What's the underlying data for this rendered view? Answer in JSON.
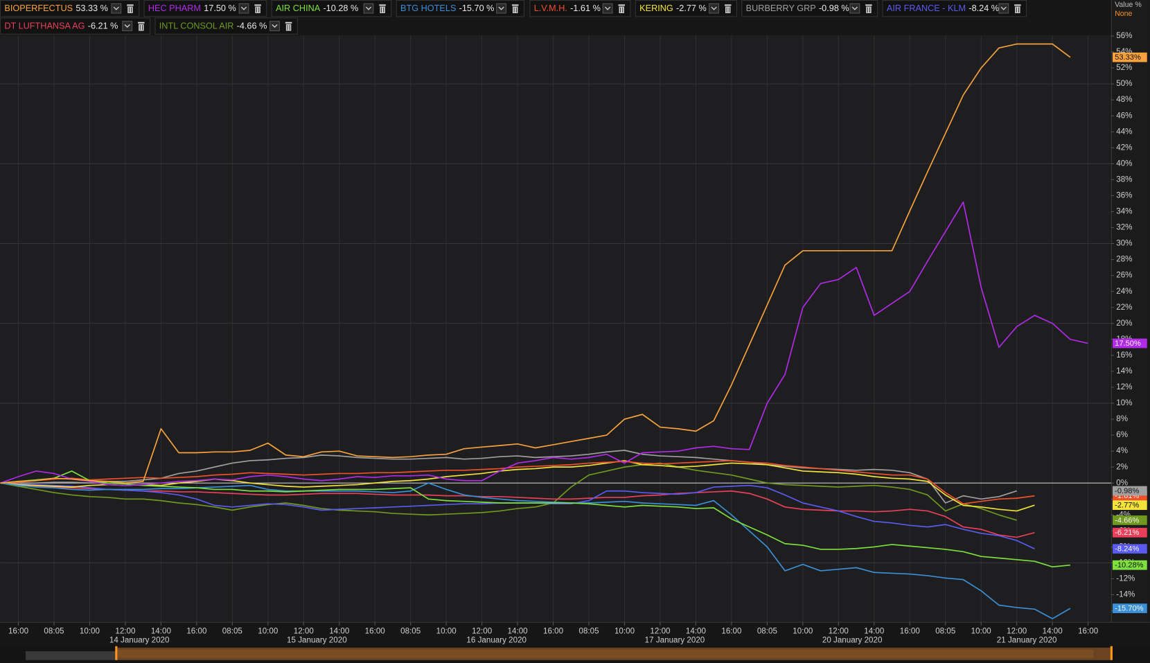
{
  "chart_data": {
    "type": "line",
    "value_axis_label": "Value %",
    "mode_label": "None",
    "categories": [
      null,
      "16:00",
      null,
      "08:05",
      null,
      "10:00",
      null,
      "12:00",
      null,
      "14:00",
      null,
      "16:00",
      null,
      "08:05",
      null,
      "10:00",
      null,
      "12:00",
      null,
      "14:00",
      null,
      "16:00",
      null,
      "08:05",
      null,
      "10:00",
      null,
      "12:00",
      null,
      "14:00",
      null,
      "16:00",
      null,
      "08:05",
      null,
      "10:00",
      null,
      "12:00",
      null,
      "14:00",
      null,
      "16:00",
      null,
      "08:05",
      null,
      "10:00",
      null,
      "12:00",
      null,
      "14:00",
      null,
      "16:00",
      null,
      "08:05",
      null,
      "10:00",
      null,
      "12:00",
      null,
      "14:00",
      null,
      "16:00"
    ],
    "date_labels": [
      "14 January 2020",
      "15 January 2020",
      "16 January 2020",
      "17 January 2020",
      "20 January 2020",
      "21 January 2020"
    ],
    "ylim": [
      -17.4,
      56.1
    ],
    "yticks": [
      {
        "value": 56,
        "label": "56%"
      },
      {
        "value": 54,
        "label": "54%"
      },
      {
        "value": 52,
        "label": "52%"
      },
      {
        "value": 50,
        "label": "50%"
      },
      {
        "value": 48,
        "label": "48%"
      },
      {
        "value": 46,
        "label": "46%"
      },
      {
        "value": 44,
        "label": "44%"
      },
      {
        "value": 42,
        "label": "42%"
      },
      {
        "value": 40,
        "label": "40%"
      },
      {
        "value": 38,
        "label": "38%"
      },
      {
        "value": 36,
        "label": "36%"
      },
      {
        "value": 34,
        "label": "34%"
      },
      {
        "value": 32,
        "label": "32%"
      },
      {
        "value": 30,
        "label": "30%"
      },
      {
        "value": 28,
        "label": "28%"
      },
      {
        "value": 26,
        "label": "26%"
      },
      {
        "value": 24,
        "label": "24%"
      },
      {
        "value": 22,
        "label": "22%"
      },
      {
        "value": 20,
        "label": "20%"
      },
      {
        "value": 18,
        "label": "18%"
      },
      {
        "value": 16,
        "label": "16%"
      },
      {
        "value": 14,
        "label": "14%"
      },
      {
        "value": 12,
        "label": "12%"
      },
      {
        "value": 10,
        "label": "10%"
      },
      {
        "value": 8,
        "label": "8%"
      },
      {
        "value": 6,
        "label": "6%"
      },
      {
        "value": 4,
        "label": "4%"
      },
      {
        "value": 2,
        "label": "2%"
      },
      {
        "value": 0,
        "label": "0%"
      },
      {
        "value": -2,
        "label": "-2%"
      },
      {
        "value": -4,
        "label": "-4%"
      },
      {
        "value": -6,
        "label": "-6%"
      },
      {
        "value": -8,
        "label": "-8%"
      },
      {
        "value": -10,
        "label": "-10%"
      },
      {
        "value": -12,
        "label": "-12%"
      },
      {
        "value": -14,
        "label": "-14%"
      },
      {
        "value": -16,
        "label": "-16%"
      }
    ],
    "grid": true,
    "series": [
      {
        "name": "BIOPERFECTUS",
        "color": "#f7a23c",
        "legend_label": "53.33 %",
        "end_label": "53.33%",
        "values": [
          0,
          0.2,
          0.3,
          0.6,
          0.5,
          0.3,
          0.2,
          0,
          0.2,
          6.8,
          3.8,
          3.8,
          3.9,
          3.9,
          4.1,
          5.0,
          3.5,
          3.3,
          3.9,
          4.0,
          3.4,
          3.3,
          3.2,
          3.3,
          3.5,
          3.6,
          4.3,
          4.5,
          4.7,
          4.9,
          4.4,
          4.8,
          5.2,
          5.6,
          6.0,
          8.0,
          8.6,
          7.0,
          6.8,
          6.5,
          7.8,
          12.3,
          17.3,
          22.3,
          27.3,
          29.1,
          29.1,
          29.1,
          29.1,
          29.1,
          29.1,
          34.1,
          39.0,
          43.8,
          48.6,
          52,
          54.5,
          55,
          55,
          55,
          53.33,
          null
        ]
      },
      {
        "name": "HEC PHARM",
        "color": "#b02ae8",
        "legend_label": "17.50 %",
        "end_label": "17.50%",
        "values": [
          0,
          0.8,
          1.5,
          1.2,
          0.5,
          0.2,
          -0.2,
          -0.3,
          -0.2,
          0,
          0.2,
          0.3,
          0.5,
          0.4,
          0.8,
          1.0,
          0.8,
          0.5,
          0.3,
          0.5,
          0.8,
          0.7,
          0.9,
          0.9,
          1.0,
          0.5,
          0.3,
          0.3,
          1.5,
          2.5,
          2.8,
          3.2,
          3.0,
          3.2,
          3.6,
          2.5,
          3.8,
          3.9,
          4.0,
          4.4,
          4.6,
          4.3,
          4.2,
          10.0,
          13.6,
          22,
          25,
          25.5,
          27.0,
          21.0,
          22.5,
          24.0,
          27.8,
          31.5,
          35.2,
          24.5,
          17.0,
          19.6,
          21.0,
          20.0,
          18.0,
          17.5
        ]
      },
      {
        "name": "AIR CHINA",
        "color": "#7ee03c",
        "legend_label": "-10.28 %",
        "end_label": "-10.28%",
        "values": [
          0,
          0.2,
          0.4,
          0.6,
          1.5,
          0.3,
          0,
          -0.1,
          -0.3,
          -0.4,
          -0.5,
          -0.6,
          -0.8,
          -0.8,
          -1.0,
          -1.0,
          -1.1,
          -1.0,
          -0.9,
          -0.8,
          -0.8,
          -0.8,
          -0.7,
          -0.6,
          -2.0,
          -2.2,
          -2.3,
          -2.4,
          -2.5,
          -2.5,
          -2.5,
          -2.5,
          -2.5,
          -2.6,
          -2.8,
          -3.0,
          -2.8,
          -2.9,
          -3.0,
          -3.2,
          -3.1,
          -4.5,
          -5.5,
          -6.5,
          -7.6,
          -7.8,
          -8.3,
          -8.3,
          -8.2,
          -8.0,
          -7.7,
          -7.9,
          -8.1,
          -8.3,
          -8.6,
          -9.2,
          -9.4,
          -9.6,
          -9.8,
          -10.5,
          -10.28,
          null
        ]
      },
      {
        "name": "BTG HOTELS",
        "color": "#3a8fd6",
        "legend_label": "-15.70 %",
        "end_label": "-15.70%",
        "values": [
          0,
          -0.3,
          -0.5,
          -0.6,
          -0.8,
          -0.9,
          -0.8,
          -0.8,
          -0.8,
          -0.7,
          -0.7,
          -0.6,
          -0.5,
          -0.4,
          -0.3,
          -0.8,
          -1.0,
          -1.0,
          -1.0,
          -1.0,
          -1.0,
          -1.1,
          -1.2,
          -1.0,
          0,
          -0.8,
          -1.5,
          -1.8,
          -2.0,
          -2.2,
          -2.3,
          -2.4,
          -2.5,
          -2.5,
          -2.4,
          -2.3,
          -2.5,
          -2.6,
          -2.7,
          -2.8,
          -2.2,
          -4.0,
          -6.0,
          -8.0,
          -11.0,
          -10.2,
          -11.0,
          -10.8,
          -10.6,
          -11.2,
          -11.3,
          -11.4,
          -11.6,
          -11.9,
          -12.1,
          -13.5,
          -15.3,
          -15.6,
          -15.8,
          -17.0,
          -15.7,
          null
        ]
      },
      {
        "name": "L.V.M.H.",
        "color": "#f0502a",
        "legend_label": "-1.61 %",
        "end_label": "-1.61%",
        "values": [
          0,
          0.1,
          0.3,
          0.5,
          0.6,
          0.4,
          0.5,
          0.6,
          0.7,
          0.6,
          0.7,
          0.8,
          1.0,
          1.1,
          1.3,
          1.2,
          1.1,
          1.0,
          1.1,
          1.2,
          1.2,
          1.3,
          1.3,
          1.4,
          1.5,
          1.6,
          1.6,
          1.7,
          1.8,
          2.0,
          2.1,
          2.2,
          2.3,
          2.5,
          2.6,
          2.7,
          2.5,
          2.4,
          2.5,
          2.6,
          2.7,
          2.8,
          2.6,
          2.5,
          2.2,
          2.0,
          1.8,
          1.6,
          1.4,
          1.2,
          1.0,
          1.0,
          0.5,
          -1.2,
          -2.6,
          -2.3,
          -2.0,
          -1.9,
          -1.61,
          null,
          null,
          null
        ]
      },
      {
        "name": "KERING",
        "color": "#f3e33a",
        "legend_label": "-2.77 %",
        "end_label": "-2.77%",
        "values": [
          0,
          -0.2,
          -0.3,
          -0.4,
          -0.5,
          -0.3,
          -0.2,
          -0.3,
          -0.2,
          -0.3,
          0,
          0.2,
          0.5,
          0.3,
          0,
          -0.2,
          -0.4,
          -0.5,
          -0.4,
          -0.3,
          -0.2,
          0,
          0.2,
          0.3,
          0.5,
          0.8,
          1.0,
          1.2,
          1.5,
          1.7,
          1.8,
          2.0,
          2.0,
          2.2,
          2.5,
          2.8,
          2.3,
          2.2,
          2.0,
          2.1,
          2.3,
          2.5,
          2.4,
          2.3,
          1.9,
          1.5,
          1.4,
          1.3,
          1.1,
          0.8,
          0.6,
          0.5,
          0.2,
          -1.5,
          -2.8,
          -3.0,
          -3.3,
          -3.5,
          -2.77,
          null,
          null,
          null
        ]
      },
      {
        "name": "BURBERRY GRP",
        "color": "#a0a0a0",
        "legend_label": "-0.98 %",
        "end_label": "-0.98%",
        "values": [
          0,
          0,
          0,
          0.1,
          0.1,
          0,
          0.2,
          0.2,
          0.4,
          0.6,
          1.2,
          1.5,
          2.0,
          2.5,
          2.8,
          2.9,
          3.1,
          3.2,
          3.5,
          3.4,
          3.2,
          3.1,
          3.0,
          3.0,
          3.1,
          3.2,
          3.0,
          3.1,
          3.3,
          3.4,
          3.2,
          3.3,
          3.4,
          3.6,
          3.9,
          4.1,
          3.6,
          3.4,
          3.3,
          3.2,
          3.0,
          2.8,
          2.6,
          2.3,
          2.1,
          1.9,
          1.8,
          1.7,
          1.6,
          1.7,
          1.6,
          1.3,
          0.5,
          -2.5,
          -1.6,
          -2.0,
          -1.7,
          -0.98,
          null,
          null,
          null,
          null
        ]
      },
      {
        "name": "AIR FRANCE - KLM",
        "color": "#5a5af0",
        "legend_label": "-8.24 %",
        "end_label": "-8.24%",
        "values": [
          0,
          -0.1,
          -0.2,
          -0.3,
          -0.4,
          -0.6,
          -0.8,
          -0.9,
          -1.0,
          -1.2,
          -1.5,
          -2.0,
          -2.8,
          -3.0,
          -2.8,
          -2.6,
          -2.7,
          -3.0,
          -3.4,
          -3.3,
          -3.2,
          -3.1,
          -3.0,
          -2.9,
          -2.8,
          -2.7,
          -2.6,
          -2.6,
          -2.5,
          -2.5,
          -2.5,
          -2.6,
          -2.6,
          -2.2,
          -1.0,
          -1.0,
          -1.2,
          -1.3,
          -1.4,
          -1.2,
          -0.5,
          -0.4,
          -0.3,
          -0.6,
          -1.5,
          -2.5,
          -3.0,
          -3.5,
          -4.2,
          -4.8,
          -5.0,
          -5.3,
          -5.5,
          -5.2,
          -5.8,
          -6.3,
          -6.6,
          -7.2,
          -8.24,
          null,
          null,
          null
        ]
      },
      {
        "name": "DT LUFTHANSA AG",
        "color": "#e8405a",
        "legend_label": "-6.21 %",
        "end_label": "-6.21%",
        "values": [
          0,
          -0.2,
          -0.4,
          -0.5,
          -0.6,
          -0.7,
          -0.8,
          -0.9,
          -1.0,
          -1.0,
          -1.1,
          -1.1,
          -1.2,
          -1.3,
          -1.4,
          -1.5,
          -1.5,
          -1.4,
          -1.3,
          -1.3,
          -1.3,
          -1.4,
          -1.5,
          -1.5,
          -1.5,
          -1.6,
          -1.6,
          -1.7,
          -1.7,
          -1.8,
          -1.9,
          -2.0,
          -2.0,
          -1.9,
          -1.8,
          -1.8,
          -1.6,
          -1.5,
          -1.3,
          -1.2,
          -1.1,
          -1.0,
          -1.3,
          -2.0,
          -3.0,
          -3.3,
          -3.4,
          -3.5,
          -3.5,
          -3.6,
          -3.5,
          -3.3,
          -3.5,
          -4.2,
          -5.5,
          -5.8,
          -6.5,
          -6.8,
          -6.21,
          null,
          null,
          null
        ]
      },
      {
        "name": "INTL CONSOL AIR",
        "color": "#6f9a1f",
        "legend_label": "-4.66 %",
        "end_label": "-4.66%",
        "values": [
          0,
          -0.4,
          -0.8,
          -1.2,
          -1.5,
          -1.7,
          -1.8,
          -2.0,
          -2.0,
          -2.2,
          -2.5,
          -2.7,
          -3.0,
          -3.4,
          -3.0,
          -2.7,
          -2.5,
          -2.8,
          -3.2,
          -3.4,
          -3.5,
          -3.6,
          -3.8,
          -3.9,
          -4.0,
          -3.9,
          -3.8,
          -3.7,
          -3.5,
          -3.2,
          -3.0,
          -2.5,
          -0.5,
          1.0,
          1.5,
          2.0,
          2.3,
          2.5,
          2.0,
          1.6,
          1.3,
          1.0,
          0.5,
          0,
          -0.2,
          -0.3,
          -0.4,
          -0.5,
          -0.4,
          -0.3,
          -0.5,
          -0.8,
          -1.5,
          -3.5,
          -2.6,
          -3.2,
          -4.0,
          -4.66,
          null,
          null,
          null,
          null
        ]
      }
    ]
  }
}
